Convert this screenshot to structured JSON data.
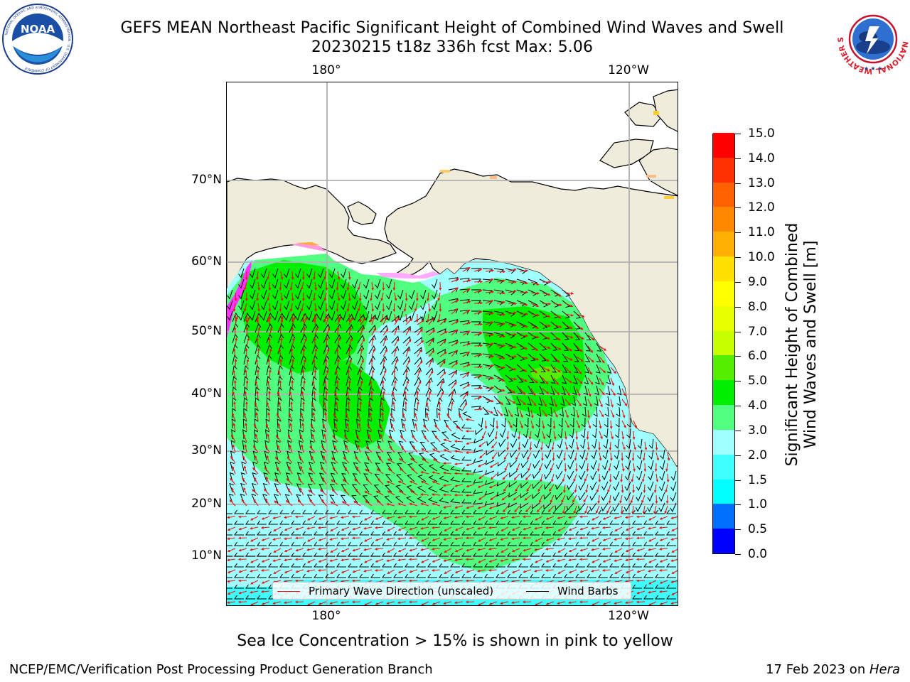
{
  "header": {
    "title_line1": "GEFS MEAN Northeast Pacific Significant Height of Combined Wind Waves and Swell",
    "title_line2": "20230215 t18z 336h fcst   Max: 5.06",
    "noaa_logo_text": "NOAA",
    "noaa_ring_text": "NATIONAL OCEANIC AND ATMOSPHERIC ADMINISTRATION · U.S. DEPARTMENT OF COMMERCE",
    "nws_ring_text": "NATIONAL WEATHER SERVICE"
  },
  "map": {
    "lon_labels_top": [
      "180°",
      "120°W"
    ],
    "lon_labels_bottom": [
      "180°",
      "120°W"
    ],
    "lat_labels": [
      "70°N",
      "60°N",
      "50°N",
      "40°N",
      "30°N",
      "20°N",
      "10°N"
    ],
    "colors": {
      "land": "#efecdc",
      "ocean_missing": "#ffffff",
      "grid": "#b0b0b0",
      "wave_arrow": "#ee1111",
      "wind_barb": "#000000"
    }
  },
  "legend": {
    "wave_label": "Primary Wave Direction (unscaled)",
    "wind_label": "Wind Barbs"
  },
  "colorbar": {
    "title_line1": "Significant Height of Combined",
    "title_line2": "Wind Waves and Swell [m]",
    "tick_labels": [
      "0.0",
      "0.5",
      "1.0",
      "1.5",
      "2.0",
      "3.0",
      "4.0",
      "5.0",
      "6.0",
      "7.0",
      "8.0",
      "9.0",
      "10.0",
      "11.0",
      "12.0",
      "13.0",
      "14.0",
      "15.0"
    ],
    "colors": [
      "#0000ff",
      "#0070ff",
      "#00ffff",
      "#40ffff",
      "#a0ffff",
      "#50ff80",
      "#00ee00",
      "#55ee00",
      "#c8ff00",
      "#e8ff00",
      "#ffff00",
      "#ffe000",
      "#ffb000",
      "#ff8800",
      "#ff6000",
      "#ff3000",
      "#ff0000"
    ]
  },
  "notes": {
    "ice_note": "Sea Ice Concentration > 15% is shown in pink to yellow"
  },
  "footer": {
    "left": "NCEP/EMC/Verification Post Processing Product Generation Branch",
    "right_prefix": "17 Feb 2023 on ",
    "right_host": "Hera"
  }
}
